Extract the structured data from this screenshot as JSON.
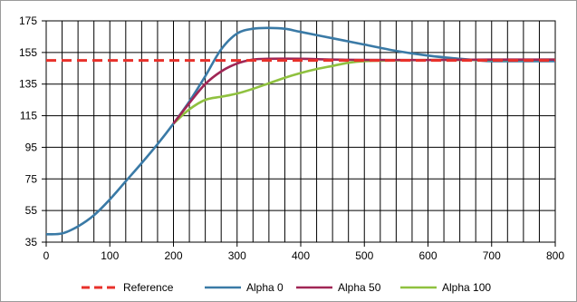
{
  "chart_data": {
    "type": "line",
    "title": "",
    "xlabel": "",
    "ylabel": "",
    "xlim": [
      0,
      800
    ],
    "ylim": [
      35,
      175
    ],
    "xticks": [
      0,
      100,
      200,
      300,
      400,
      500,
      600,
      700,
      800
    ],
    "yticks": [
      35,
      55,
      75,
      95,
      115,
      135,
      155,
      175
    ],
    "grid": true,
    "legend_position": "bottom",
    "series": [
      {
        "name": "Reference",
        "color": "#e8312b",
        "style": "dashed",
        "x": [
          0,
          800
        ],
        "y": [
          150,
          150
        ]
      },
      {
        "name": "Alpha 0",
        "color": "#3a7aa6",
        "style": "solid",
        "x": [
          0,
          25,
          50,
          75,
          100,
          125,
          150,
          175,
          200,
          225,
          250,
          275,
          300,
          325,
          350,
          375,
          400,
          450,
          500,
          550,
          600,
          650,
          680,
          700,
          750,
          800
        ],
        "y": [
          40,
          40.5,
          45,
          52,
          62,
          73.5,
          85,
          97,
          110,
          124,
          140,
          157,
          167,
          170,
          170.5,
          170,
          168,
          164,
          160,
          156,
          153,
          151,
          150,
          149.5,
          149.5,
          149.5
        ]
      },
      {
        "name": "Alpha 50",
        "color": "#a02655",
        "style": "solid",
        "x": [
          200,
          225,
          250,
          275,
          300,
          325,
          350,
          400,
          450,
          500,
          600,
          700,
          800
        ],
        "y": [
          110,
          123,
          135,
          143,
          148,
          150.5,
          151,
          151,
          150.5,
          150.3,
          150.2,
          150.5,
          150.5
        ]
      },
      {
        "name": "Alpha 100",
        "color": "#8fc13f",
        "style": "solid",
        "x": [
          200,
          225,
          250,
          275,
          300,
          325,
          350,
          375,
          400,
          425,
          450,
          475,
          500,
          550,
          600,
          700,
          800
        ],
        "y": [
          110,
          119,
          125,
          127,
          129,
          132,
          135.5,
          139,
          142,
          144.5,
          146.5,
          148.5,
          149.5,
          150,
          150.2,
          150.3,
          150.5
        ]
      }
    ]
  }
}
